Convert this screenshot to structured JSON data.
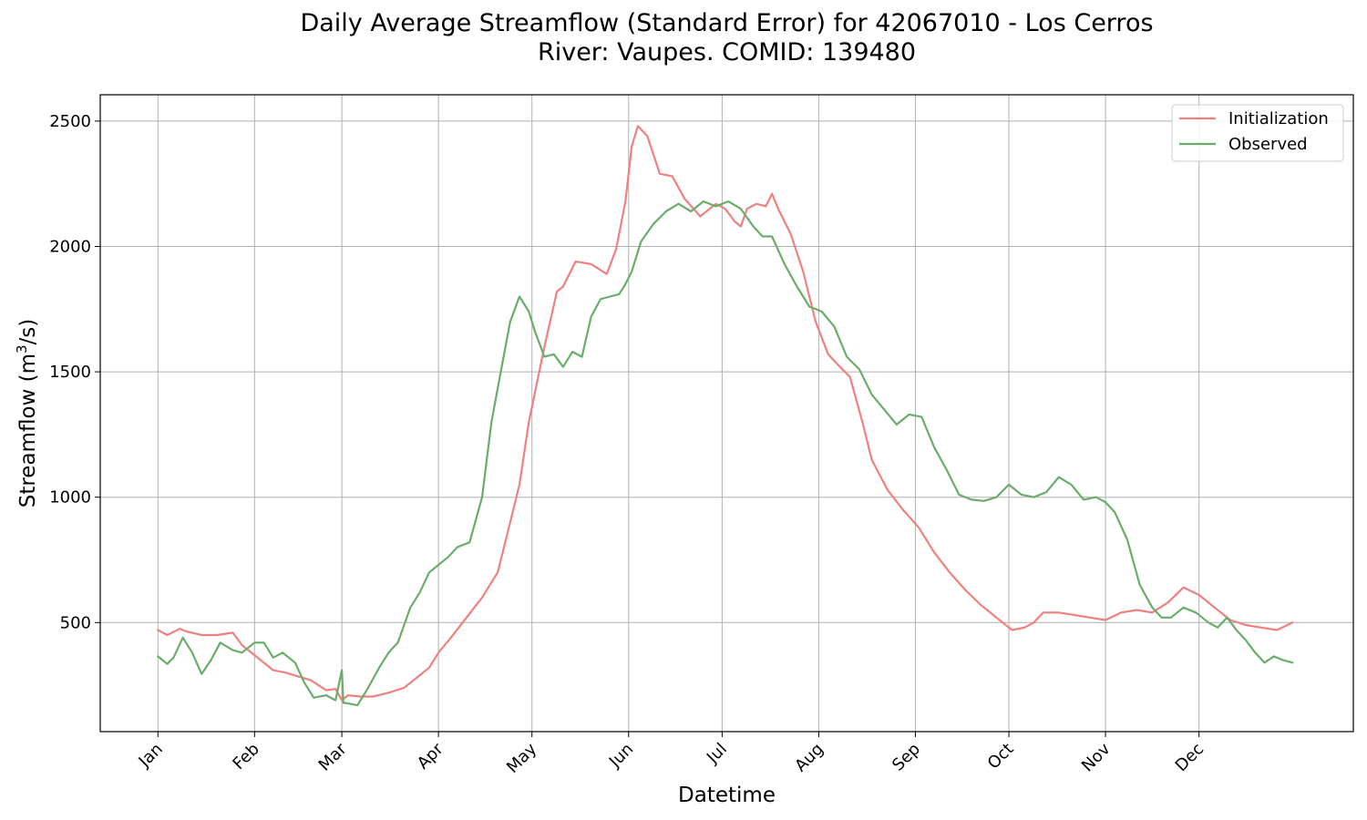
{
  "chart_data": {
    "type": "line",
    "title": "Daily Average Streamflow (Standard Error) for 42067010 - Los Cerros",
    "subtitle": "River: Vaupes. COMID: 139480",
    "xlabel": "Datetime",
    "ylabel": "Streamflow (m³/s)",
    "ylabel_base": "Streamflow (m",
    "ylabel_sup": "3",
    "ylabel_end": "/s)",
    "x_ticks": [
      "Jan",
      "Feb",
      "Mar",
      "Apr",
      "May",
      "Jun",
      "Jul",
      "Aug",
      "Sep",
      "Oct",
      "Nov",
      "Dec"
    ],
    "x_tick_days": [
      1,
      32,
      60,
      91,
      121,
      152,
      182,
      213,
      244,
      274,
      305,
      335
    ],
    "xlim": [
      -17.5,
      384.5
    ],
    "y_ticks": [
      500,
      1000,
      1500,
      2000,
      2500
    ],
    "ylim": [
      65,
      2605
    ],
    "grid": true,
    "legend_position": "top-right",
    "series": [
      {
        "name": "Initialization",
        "color": "#f08080",
        "x": [
          1,
          4,
          8,
          10,
          15,
          20,
          25,
          28,
          32,
          38,
          42,
          50,
          55,
          58,
          60,
          62,
          66,
          70,
          75,
          80,
          85,
          88,
          91,
          95,
          100,
          105,
          110,
          113,
          117,
          120,
          125,
          129,
          131,
          135,
          140,
          145,
          148,
          151,
          153,
          155,
          158,
          162,
          166,
          170,
          175,
          180,
          183,
          186,
          188,
          190,
          193,
          196,
          198,
          200,
          204,
          208,
          212,
          216,
          219,
          223,
          227,
          230,
          235,
          240,
          245,
          250,
          255,
          260,
          265,
          270,
          275,
          279,
          282,
          285,
          290,
          295,
          300,
          305,
          310,
          315,
          320,
          325,
          330,
          335,
          340,
          345,
          350,
          355,
          360,
          365
        ],
        "values": [
          470,
          450,
          475,
          465,
          450,
          450,
          460,
          410,
          370,
          310,
          300,
          270,
          230,
          235,
          190,
          210,
          205,
          205,
          220,
          240,
          290,
          320,
          380,
          440,
          520,
          600,
          700,
          850,
          1050,
          1300,
          1600,
          1820,
          1840,
          1940,
          1930,
          1890,
          1990,
          2180,
          2400,
          2480,
          2440,
          2290,
          2280,
          2190,
          2120,
          2170,
          2150,
          2100,
          2080,
          2150,
          2170,
          2160,
          2210,
          2150,
          2050,
          1900,
          1700,
          1570,
          1530,
          1480,
          1300,
          1150,
          1030,
          950,
          880,
          780,
          700,
          630,
          570,
          520,
          470,
          480,
          500,
          540,
          540,
          530,
          520,
          510,
          540,
          550,
          540,
          580,
          640,
          610,
          560,
          510,
          490,
          480,
          470,
          500
        ]
      },
      {
        "name": "Observed",
        "color": "#6aad6a",
        "x": [
          1,
          4,
          6,
          9,
          12,
          15,
          18,
          21,
          25,
          28,
          32,
          35,
          38,
          41,
          45,
          48,
          51,
          55,
          58,
          60,
          60.5,
          61,
          65,
          68,
          72,
          75,
          78,
          82,
          85,
          88,
          91,
          94,
          97,
          101,
          105,
          108,
          111,
          114,
          117,
          120,
          122,
          125,
          128,
          131,
          134,
          137,
          140,
          143,
          146,
          149,
          151,
          153,
          156,
          160,
          164,
          168,
          172,
          176,
          180,
          184,
          188,
          192,
          195,
          198,
          202,
          206,
          210,
          214,
          218,
          222,
          226,
          230,
          234,
          238,
          242,
          246,
          250,
          254,
          258,
          262,
          266,
          270,
          274,
          278,
          282,
          286,
          290,
          294,
          298,
          302,
          305,
          308,
          312,
          316,
          320,
          323,
          326,
          330,
          334,
          338,
          341,
          344,
          347,
          350,
          353,
          356,
          359,
          362,
          365
        ],
        "values": [
          365,
          335,
          360,
          440,
          380,
          295,
          350,
          420,
          390,
          380,
          420,
          420,
          360,
          380,
          340,
          260,
          200,
          210,
          190,
          310,
          180,
          180,
          170,
          230,
          320,
          380,
          420,
          560,
          620,
          700,
          730,
          760,
          800,
          820,
          1000,
          1300,
          1500,
          1700,
          1800,
          1740,
          1660,
          1560,
          1570,
          1520,
          1580,
          1560,
          1720,
          1790,
          1800,
          1810,
          1850,
          1900,
          2020,
          2090,
          2140,
          2170,
          2140,
          2180,
          2160,
          2180,
          2150,
          2080,
          2040,
          2040,
          1930,
          1840,
          1760,
          1740,
          1680,
          1560,
          1510,
          1410,
          1350,
          1290,
          1330,
          1320,
          1200,
          1110,
          1010,
          990,
          985,
          1000,
          1050,
          1010,
          1000,
          1020,
          1080,
          1050,
          990,
          1000,
          980,
          940,
          830,
          650,
          560,
          520,
          520,
          560,
          540,
          500,
          480,
          520,
          470,
          430,
          380,
          340,
          365,
          350,
          340
        ]
      }
    ]
  }
}
